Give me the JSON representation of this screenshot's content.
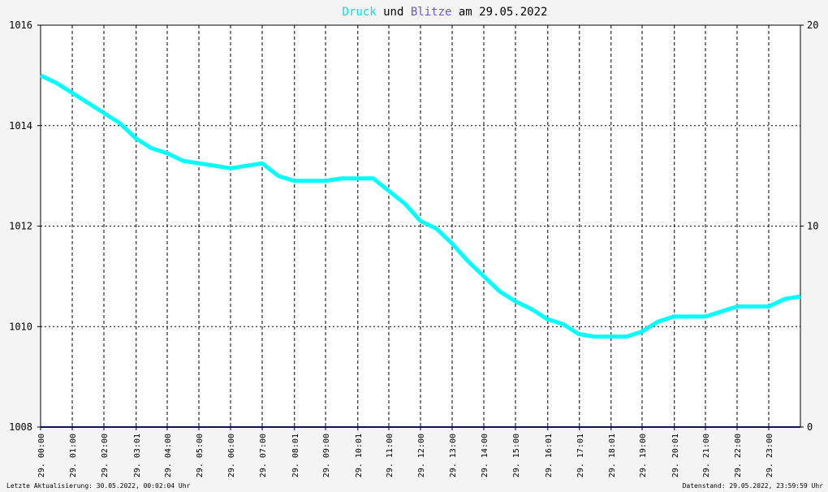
{
  "title": {
    "word1": "Druck",
    "word2": " und ",
    "word3": "Blitze",
    "word4": " am 29.05.2022"
  },
  "colors": {
    "background": "#f4f4f4",
    "plot_background": "#ffffff",
    "pressure": "#00ffff",
    "lightning": "#101060",
    "title_blitze": "#6a5acd",
    "grid": "#000000"
  },
  "footer": {
    "left": "Letzte Aktualisierung: 30.05.2022, 00:02:04 Uhr",
    "right": "Datenstand: 29.05.2022, 23:59:59 Uhr"
  },
  "chart_data": {
    "type": "line",
    "title": "Druck und Blitze am 29.05.2022",
    "x_tick_labels": [
      "29. 00:00",
      "29. 01:00",
      "29. 02:00",
      "29. 03:01",
      "29. 04:00",
      "29. 05:00",
      "29. 06:00",
      "29. 07:00",
      "29. 08:01",
      "29. 09:00",
      "29. 10:01",
      "29. 11:00",
      "29. 12:00",
      "29. 13:00",
      "29. 14:00",
      "29. 15:00",
      "29. 16:01",
      "29. 17:01",
      "29. 18:01",
      "29. 19:00",
      "29. 20:01",
      "29. 21:00",
      "29. 22:00",
      "29. 23:00"
    ],
    "x_tick_hours": [
      0,
      1,
      2,
      3.02,
      4,
      5,
      6,
      7,
      8.02,
      9,
      10.02,
      11,
      12,
      13,
      14,
      15,
      16.02,
      17.02,
      18.02,
      19,
      20.02,
      21,
      22,
      23
    ],
    "x_range_hours": [
      0,
      24
    ],
    "y_left": {
      "ticks": [
        "1016",
        "1014",
        "1012",
        "1010",
        "1008"
      ],
      "range": [
        1008,
        1016
      ]
    },
    "y_right": {
      "ticks": [
        "20",
        "10",
        "0"
      ],
      "range": [
        0,
        20
      ]
    },
    "grid": true,
    "series": [
      {
        "name": "Druck",
        "axis": "left",
        "x_hours": [
          0,
          0.5,
          1,
          1.5,
          2,
          2.5,
          3,
          3.5,
          4,
          4.5,
          5,
          5.5,
          6,
          6.5,
          7,
          7.5,
          8,
          8.5,
          9,
          9.5,
          10,
          10.5,
          11,
          11.5,
          12,
          12.5,
          13,
          13.5,
          14,
          14.5,
          15,
          15.5,
          16,
          16.5,
          17,
          17.5,
          18,
          18.5,
          19,
          19.5,
          20,
          20.5,
          21,
          21.5,
          22,
          22.5,
          23,
          23.5,
          24
        ],
        "values": [
          1015.0,
          1014.85,
          1014.65,
          1014.45,
          1014.25,
          1014.05,
          1013.75,
          1013.55,
          1013.45,
          1013.3,
          1013.25,
          1013.2,
          1013.15,
          1013.2,
          1013.25,
          1013.0,
          1012.9,
          1012.9,
          1012.9,
          1012.95,
          1012.95,
          1012.95,
          1012.7,
          1012.45,
          1012.1,
          1011.95,
          1011.65,
          1011.3,
          1011.0,
          1010.7,
          1010.5,
          1010.35,
          1010.15,
          1010.05,
          1009.85,
          1009.8,
          1009.8,
          1009.8,
          1009.9,
          1010.1,
          1010.2,
          1010.2,
          1010.2,
          1010.3,
          1010.4,
          1010.4,
          1010.4,
          1010.55,
          1010.6
        ]
      },
      {
        "name": "Blitze",
        "axis": "right",
        "x_hours": [
          0,
          24
        ],
        "values": [
          0,
          0
        ]
      }
    ]
  }
}
